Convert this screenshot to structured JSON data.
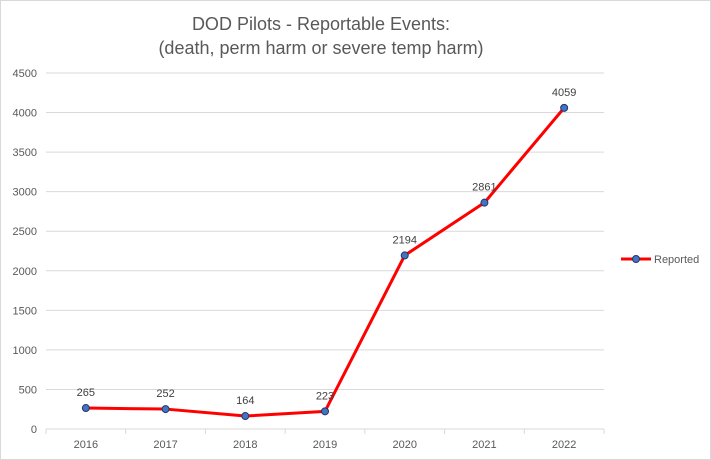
{
  "chart_data": {
    "type": "line",
    "title": "DOD Pilots - Reportable Events:",
    "subtitle": "(death, perm harm or severe temp harm)",
    "xlabel": "",
    "ylabel": "",
    "categories": [
      "2016",
      "2017",
      "2018",
      "2019",
      "2020",
      "2021",
      "2022"
    ],
    "series": [
      {
        "name": "Reported",
        "values": [
          265,
          252,
          164,
          223,
          2194,
          2861,
          4059
        ],
        "color": "#ff0000",
        "marker_color": "#4472c4"
      }
    ],
    "data_labels": [
      "265",
      "252",
      "164",
      "223",
      "2194",
      "2861",
      "4059"
    ],
    "ylim": [
      0,
      4500
    ],
    "yticks": [
      0,
      500,
      1000,
      1500,
      2000,
      2500,
      3000,
      3500,
      4000,
      4500
    ],
    "ytick_labels": [
      "0",
      "500",
      "1000",
      "1500",
      "2000",
      "2500",
      "3000",
      "3500",
      "4000",
      "4500"
    ],
    "grid": true,
    "legend_position": "right"
  }
}
